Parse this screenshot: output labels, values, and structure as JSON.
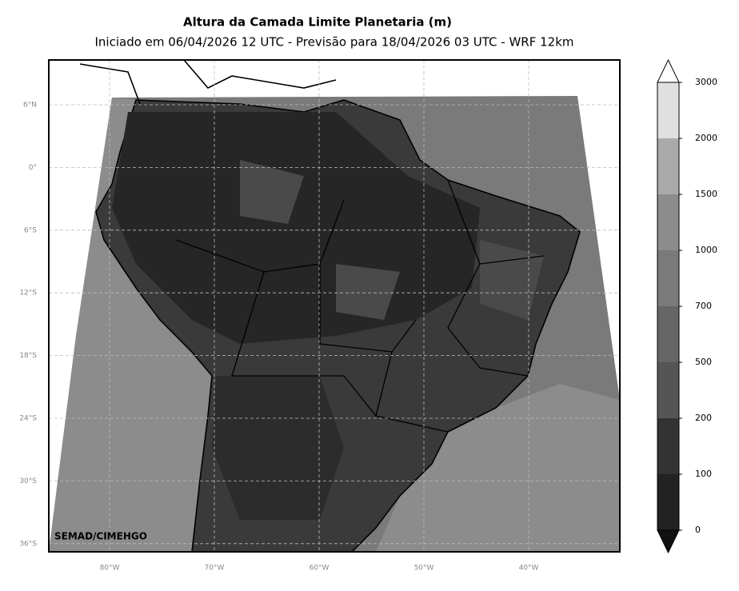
{
  "header": {
    "title": "Altura da Camada Limite Planetaria (m)",
    "subtitle": "Iniciado em 06/04/2026 12 UTC - Previsão para 18/04/2026 03 UTC - WRF 12km"
  },
  "map": {
    "lat_labels": [
      "6°N",
      "0°",
      "6°S",
      "12°S",
      "18°S",
      "24°S",
      "30°S",
      "36°S"
    ],
    "lon_labels": [
      "80°W",
      "70°W",
      "60°W",
      "50°W",
      "40°W"
    ],
    "watermark": "SEMAD/CIMEHGO"
  },
  "colorbar": {
    "levels": [
      0,
      100,
      200,
      500,
      700,
      1000,
      1500,
      2000,
      3000
    ],
    "colors": [
      "#222222",
      "#333333",
      "#555555",
      "#666666",
      "#7a7a7a",
      "#8c8c8c",
      "#aaaaaa",
      "#e0e0e0"
    ]
  }
}
